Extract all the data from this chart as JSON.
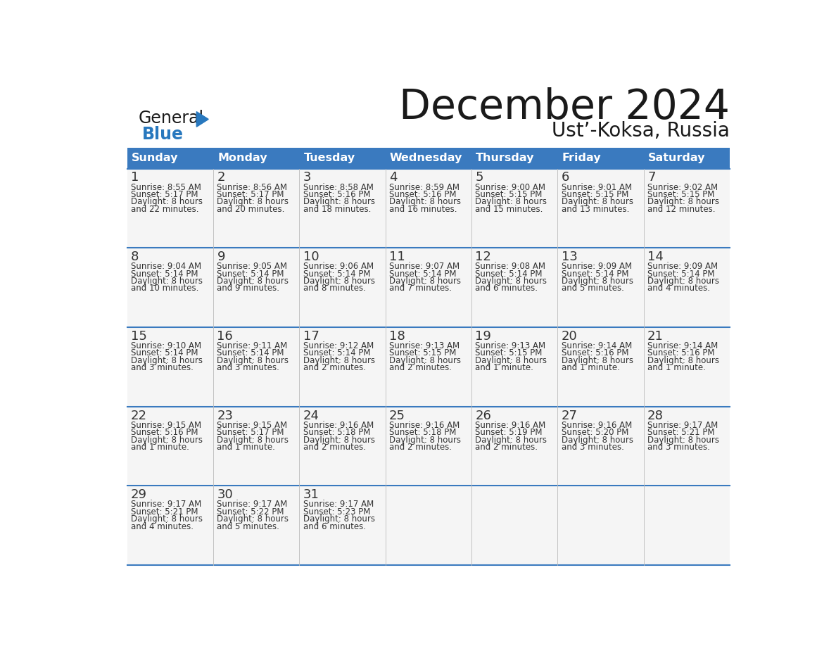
{
  "title": "December 2024",
  "subtitle": "Ust’-Koksa, Russia",
  "header_color": "#3a7abf",
  "header_text_color": "#ffffff",
  "border_color": "#3a7abf",
  "row_separator_color": "#3a7abf",
  "cell_bg_even": "#f5f5f5",
  "cell_bg_odd": "#ffffff",
  "days_of_week": [
    "Sunday",
    "Monday",
    "Tuesday",
    "Wednesday",
    "Thursday",
    "Friday",
    "Saturday"
  ],
  "weeks": [
    [
      {
        "day": 1,
        "sunrise": "8:55 AM",
        "sunset": "5:17 PM",
        "daylight": "8 hours and 22 minutes."
      },
      {
        "day": 2,
        "sunrise": "8:56 AM",
        "sunset": "5:17 PM",
        "daylight": "8 hours and 20 minutes."
      },
      {
        "day": 3,
        "sunrise": "8:58 AM",
        "sunset": "5:16 PM",
        "daylight": "8 hours and 18 minutes."
      },
      {
        "day": 4,
        "sunrise": "8:59 AM",
        "sunset": "5:16 PM",
        "daylight": "8 hours and 16 minutes."
      },
      {
        "day": 5,
        "sunrise": "9:00 AM",
        "sunset": "5:15 PM",
        "daylight": "8 hours and 15 minutes."
      },
      {
        "day": 6,
        "sunrise": "9:01 AM",
        "sunset": "5:15 PM",
        "daylight": "8 hours and 13 minutes."
      },
      {
        "day": 7,
        "sunrise": "9:02 AM",
        "sunset": "5:15 PM",
        "daylight": "8 hours and 12 minutes."
      }
    ],
    [
      {
        "day": 8,
        "sunrise": "9:04 AM",
        "sunset": "5:14 PM",
        "daylight": "8 hours and 10 minutes."
      },
      {
        "day": 9,
        "sunrise": "9:05 AM",
        "sunset": "5:14 PM",
        "daylight": "8 hours and 9 minutes."
      },
      {
        "day": 10,
        "sunrise": "9:06 AM",
        "sunset": "5:14 PM",
        "daylight": "8 hours and 8 minutes."
      },
      {
        "day": 11,
        "sunrise": "9:07 AM",
        "sunset": "5:14 PM",
        "daylight": "8 hours and 7 minutes."
      },
      {
        "day": 12,
        "sunrise": "9:08 AM",
        "sunset": "5:14 PM",
        "daylight": "8 hours and 6 minutes."
      },
      {
        "day": 13,
        "sunrise": "9:09 AM",
        "sunset": "5:14 PM",
        "daylight": "8 hours and 5 minutes."
      },
      {
        "day": 14,
        "sunrise": "9:09 AM",
        "sunset": "5:14 PM",
        "daylight": "8 hours and 4 minutes."
      }
    ],
    [
      {
        "day": 15,
        "sunrise": "9:10 AM",
        "sunset": "5:14 PM",
        "daylight": "8 hours and 3 minutes."
      },
      {
        "day": 16,
        "sunrise": "9:11 AM",
        "sunset": "5:14 PM",
        "daylight": "8 hours and 3 minutes."
      },
      {
        "day": 17,
        "sunrise": "9:12 AM",
        "sunset": "5:14 PM",
        "daylight": "8 hours and 2 minutes."
      },
      {
        "day": 18,
        "sunrise": "9:13 AM",
        "sunset": "5:15 PM",
        "daylight": "8 hours and 2 minutes."
      },
      {
        "day": 19,
        "sunrise": "9:13 AM",
        "sunset": "5:15 PM",
        "daylight": "8 hours and 1 minute."
      },
      {
        "day": 20,
        "sunrise": "9:14 AM",
        "sunset": "5:16 PM",
        "daylight": "8 hours and 1 minute."
      },
      {
        "day": 21,
        "sunrise": "9:14 AM",
        "sunset": "5:16 PM",
        "daylight": "8 hours and 1 minute."
      }
    ],
    [
      {
        "day": 22,
        "sunrise": "9:15 AM",
        "sunset": "5:16 PM",
        "daylight": "8 hours and 1 minute."
      },
      {
        "day": 23,
        "sunrise": "9:15 AM",
        "sunset": "5:17 PM",
        "daylight": "8 hours and 1 minute."
      },
      {
        "day": 24,
        "sunrise": "9:16 AM",
        "sunset": "5:18 PM",
        "daylight": "8 hours and 2 minutes."
      },
      {
        "day": 25,
        "sunrise": "9:16 AM",
        "sunset": "5:18 PM",
        "daylight": "8 hours and 2 minutes."
      },
      {
        "day": 26,
        "sunrise": "9:16 AM",
        "sunset": "5:19 PM",
        "daylight": "8 hours and 2 minutes."
      },
      {
        "day": 27,
        "sunrise": "9:16 AM",
        "sunset": "5:20 PM",
        "daylight": "8 hours and 3 minutes."
      },
      {
        "day": 28,
        "sunrise": "9:17 AM",
        "sunset": "5:21 PM",
        "daylight": "8 hours and 3 minutes."
      }
    ],
    [
      {
        "day": 29,
        "sunrise": "9:17 AM",
        "sunset": "5:21 PM",
        "daylight": "8 hours and 4 minutes."
      },
      {
        "day": 30,
        "sunrise": "9:17 AM",
        "sunset": "5:22 PM",
        "daylight": "8 hours and 5 minutes."
      },
      {
        "day": 31,
        "sunrise": "9:17 AM",
        "sunset": "5:23 PM",
        "daylight": "8 hours and 6 minutes."
      },
      null,
      null,
      null,
      null
    ]
  ],
  "logo_general_color": "#1a1a1a",
  "logo_blue_color": "#2878be",
  "logo_triangle_color": "#2878be",
  "title_color": "#1a1a1a",
  "subtitle_color": "#1a1a1a",
  "cell_text_color": "#333333",
  "day_num_color": "#333333"
}
